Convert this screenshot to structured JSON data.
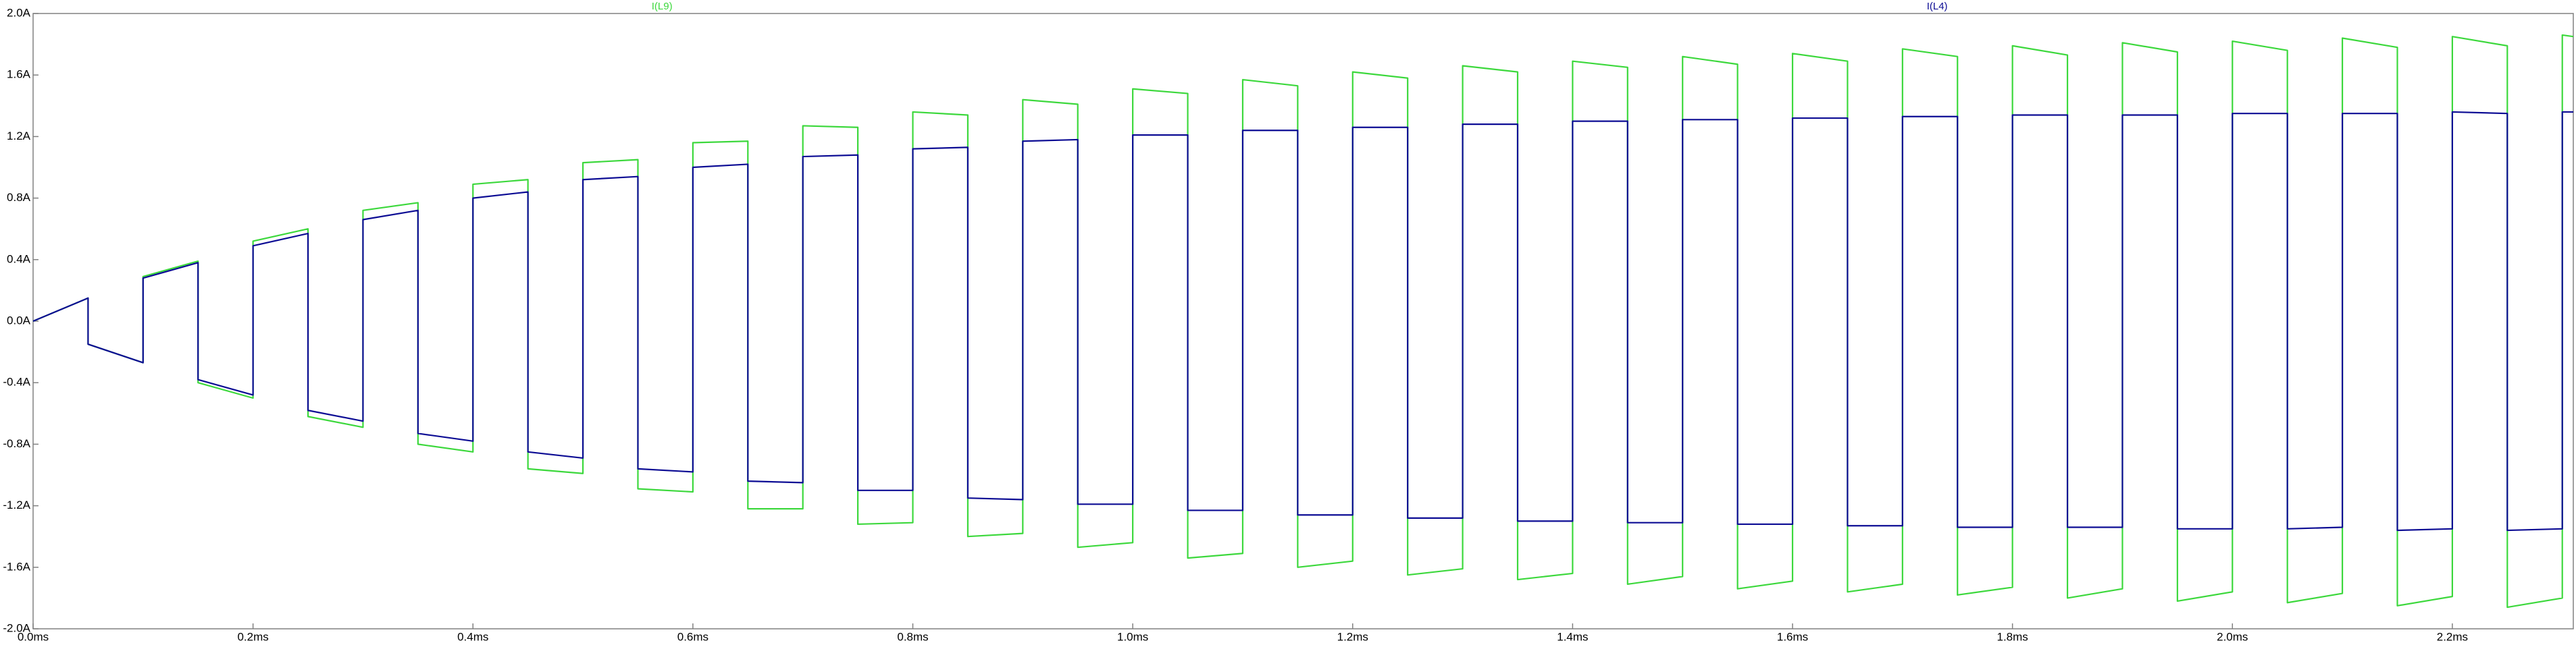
{
  "chart_data": {
    "type": "line",
    "x": [
      0,
      0.05,
      0.05,
      0.1,
      0.1,
      0.15,
      0.15,
      0.2,
      0.2,
      0.25,
      0.25,
      0.3,
      0.3,
      0.35,
      0.35,
      0.4,
      0.4,
      0.45,
      0.45,
      0.5,
      0.5,
      0.55,
      0.55,
      0.6,
      0.6,
      0.65,
      0.65,
      0.7,
      0.7,
      0.75,
      0.75,
      0.8,
      0.8,
      0.85,
      0.85,
      0.9,
      0.9,
      0.95,
      0.95,
      1.0,
      1.0,
      1.05,
      1.05,
      1.1,
      1.1,
      1.15,
      1.15,
      1.2,
      1.2,
      1.25,
      1.25,
      1.3,
      1.3,
      1.35,
      1.35,
      1.4,
      1.4,
      1.45,
      1.45,
      1.5,
      1.5,
      1.55,
      1.55,
      1.6,
      1.6,
      1.65,
      1.65,
      1.7,
      1.7,
      1.75,
      1.75,
      1.8,
      1.8,
      1.85,
      1.85,
      1.9,
      1.9,
      1.95,
      1.95,
      2.0,
      2.0,
      2.05,
      2.05,
      2.1,
      2.1,
      2.15,
      2.15,
      2.2,
      2.2,
      2.25,
      2.25,
      2.3,
      2.3,
      2.31
    ],
    "series": [
      {
        "name": "I(L9)",
        "color": "#3cd83c",
        "values": [
          0,
          0.15,
          -0.15,
          -0.27,
          0.29,
          0.39,
          -0.4,
          -0.5,
          0.52,
          0.6,
          -0.62,
          -0.69,
          0.72,
          0.77,
          -0.8,
          -0.85,
          0.89,
          0.92,
          -0.96,
          -0.99,
          1.03,
          1.05,
          -1.09,
          -1.11,
          1.16,
          1.17,
          -1.22,
          -1.22,
          1.27,
          1.26,
          -1.32,
          -1.31,
          1.36,
          1.34,
          -1.4,
          -1.38,
          1.44,
          1.41,
          -1.47,
          -1.44,
          1.51,
          1.48,
          -1.54,
          -1.51,
          1.57,
          1.53,
          -1.6,
          -1.56,
          1.62,
          1.58,
          -1.65,
          -1.61,
          1.66,
          1.62,
          -1.68,
          -1.64,
          1.69,
          1.65,
          -1.71,
          -1.66,
          1.72,
          1.67,
          -1.74,
          -1.69,
          1.74,
          1.69,
          -1.76,
          -1.71,
          1.77,
          1.72,
          -1.78,
          -1.73,
          1.79,
          1.73,
          -1.8,
          -1.74,
          1.81,
          1.75,
          -1.82,
          -1.76,
          1.82,
          1.76,
          -1.83,
          -1.77,
          1.84,
          1.78,
          -1.85,
          -1.79,
          1.85,
          1.79,
          -1.86,
          -1.8,
          1.86,
          1.85
        ]
      },
      {
        "name": "I(L4)",
        "color": "#0c0c94",
        "values": [
          0,
          0.15,
          -0.15,
          -0.27,
          0.28,
          0.38,
          -0.38,
          -0.48,
          0.49,
          0.57,
          -0.58,
          -0.65,
          0.66,
          0.72,
          -0.73,
          -0.78,
          0.8,
          0.84,
          -0.85,
          -0.89,
          0.92,
          0.94,
          -0.96,
          -0.98,
          1.0,
          1.02,
          -1.04,
          -1.05,
          1.07,
          1.08,
          -1.1,
          -1.1,
          1.12,
          1.13,
          -1.15,
          -1.16,
          1.17,
          1.18,
          -1.19,
          -1.19,
          1.21,
          1.21,
          -1.23,
          -1.23,
          1.24,
          1.24,
          -1.26,
          -1.26,
          1.26,
          1.26,
          -1.28,
          -1.28,
          1.28,
          1.28,
          -1.3,
          -1.3,
          1.3,
          1.3,
          -1.31,
          -1.31,
          1.31,
          1.31,
          -1.32,
          -1.32,
          1.32,
          1.32,
          -1.33,
          -1.33,
          1.33,
          1.33,
          -1.34,
          -1.34,
          1.34,
          1.34,
          -1.34,
          -1.34,
          1.34,
          1.34,
          -1.35,
          -1.35,
          1.35,
          1.35,
          -1.35,
          -1.34,
          1.35,
          1.35,
          -1.36,
          -1.35,
          1.36,
          1.35,
          -1.36,
          -1.35,
          1.36,
          1.36
        ]
      }
    ],
    "xlim": [
      0,
      2.31
    ],
    "ylim": [
      -2.0,
      2.0
    ],
    "xticks": [
      {
        "value": 0,
        "label": "0.0ms"
      },
      {
        "value": 0.2,
        "label": "0.2ms"
      },
      {
        "value": 0.4,
        "label": "0.4ms"
      },
      {
        "value": 0.6,
        "label": "0.6ms"
      },
      {
        "value": 0.8,
        "label": "0.8ms"
      },
      {
        "value": 1.0,
        "label": "1.0ms"
      },
      {
        "value": 1.2,
        "label": "1.2ms"
      },
      {
        "value": 1.4,
        "label": "1.4ms"
      },
      {
        "value": 1.6,
        "label": "1.6ms"
      },
      {
        "value": 1.8,
        "label": "1.8ms"
      },
      {
        "value": 2.0,
        "label": "2.0ms"
      },
      {
        "value": 2.2,
        "label": "2.2ms"
      }
    ],
    "yticks": [
      {
        "value": 2.0,
        "label": "2.0A"
      },
      {
        "value": 1.6,
        "label": "1.6A"
      },
      {
        "value": 1.2,
        "label": "1.2A"
      },
      {
        "value": 0.8,
        "label": "0.8A"
      },
      {
        "value": 0.4,
        "label": "0.4A"
      },
      {
        "value": 0,
        "label": "0.0A"
      },
      {
        "value": -0.4,
        "label": "-0.4A"
      },
      {
        "value": -0.8,
        "label": "-0.8A"
      },
      {
        "value": -1.2,
        "label": "-1.2A"
      },
      {
        "value": -1.6,
        "label": "-1.6A"
      },
      {
        "value": -2.0,
        "label": "-2.0A"
      }
    ],
    "grid": false
  }
}
